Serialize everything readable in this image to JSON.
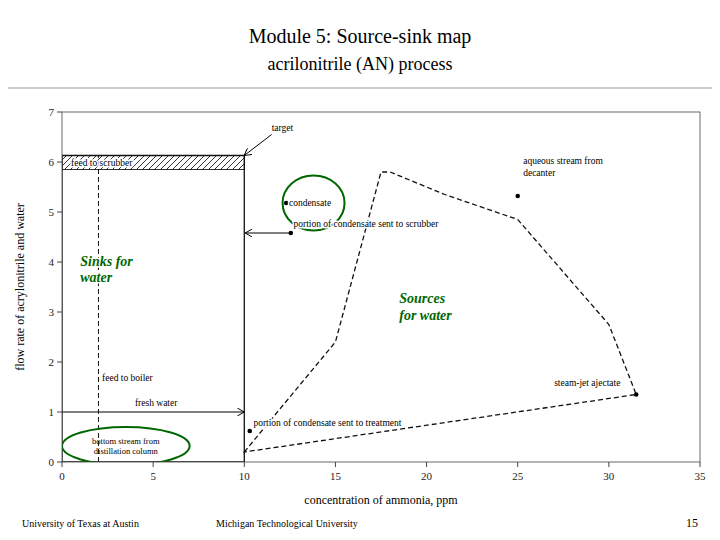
{
  "chart_data": {
    "type": "source_sink_map",
    "title": "Module 5: Source-sink map",
    "subtitle": "acrilonitrile (AN) process",
    "footer": [
      "University of Texas at Austin",
      "Michigan Technological University",
      "15"
    ],
    "x_label": "concentration of ammonia, ppm",
    "y_label": "flow rate of acrylonitrile and water",
    "xlim": [
      0,
      35
    ],
    "ylim": [
      0,
      7
    ],
    "xticks": [
      0,
      5,
      10,
      15,
      20,
      25,
      30,
      35
    ],
    "yticks": [
      0,
      1,
      2,
      3,
      4,
      5,
      6,
      7
    ],
    "grid": false,
    "sink_region": {
      "x": [
        0,
        10,
        10,
        0,
        0
      ],
      "y": [
        0,
        0,
        6.13,
        6.13,
        0
      ],
      "color": "#111111",
      "line_style": "solid"
    },
    "source_region": {
      "x": [
        10,
        15,
        17.5,
        18,
        21,
        25,
        30,
        31.5
      ],
      "y": [
        0.2,
        2.4,
        5.8,
        5.8,
        5.35,
        4.85,
        2.75,
        1.35
      ],
      "color": "#111111",
      "line_style": "dashed"
    },
    "feed_band": {
      "x": 0,
      "y": 5.85,
      "width": 10,
      "height": 0.28
    },
    "divider": {
      "x": 2.0,
      "y": [
        0,
        6.13
      ],
      "color": "#111111",
      "line_style": "dashed"
    },
    "ellipses": [
      {
        "cx": 13.8,
        "cy": 5.18,
        "rx": 1.7,
        "ry": 0.55,
        "color": "#006600"
      },
      {
        "cx": 3.5,
        "cy": 0.32,
        "rx": 3.5,
        "ry": 0.38,
        "color": "#006600",
        "label": "bottom stream from\ndistillation column"
      }
    ],
    "annotations": [
      {
        "text": "feed to scrubber",
        "x": 0.5,
        "y": 5.99
      },
      {
        "text": "target",
        "x": 11.5,
        "y": 6.55,
        "arrow_to": [
          10.0,
          6.13
        ]
      },
      {
        "text": "fresh water",
        "x": 4.0,
        "y": 1.05,
        "arrow_from": [
          0.0,
          1.0
        ],
        "arrow_to": [
          10.0,
          1.0
        ]
      },
      {
        "text": "feed to boiler",
        "x": 2.2,
        "y": 1.68
      },
      {
        "text": "condensate",
        "x": 12.45,
        "y": 5.18,
        "point": [
          12.3,
          5.18
        ]
      },
      {
        "text": "portion of condensate sent to scrubber",
        "x": 12.7,
        "y": 4.63,
        "point": [
          12.55,
          4.58
        ],
        "arrow_from": [
          12.5,
          4.58
        ],
        "arrow_to": [
          10.05,
          4.58
        ]
      },
      {
        "text": "aqueous stream from\ndecanter",
        "x": 25.3,
        "y": 5.65,
        "point": [
          25.0,
          5.32
        ]
      },
      {
        "text": "steam-jet ajectate",
        "x": 27.0,
        "y": 1.44,
        "point": [
          31.5,
          1.35
        ]
      },
      {
        "text": "portion of condensate sent to treatment",
        "x": 10.5,
        "y": 0.65,
        "point": [
          10.3,
          0.62
        ]
      }
    ],
    "region_labels": [
      {
        "text": "Sinks for\nwater",
        "x": 1.0,
        "y": 3.85,
        "color": "#006600"
      },
      {
        "text": "Sources\nfor water",
        "x": 18.5,
        "y": 3.1,
        "color": "#006600"
      }
    ]
  }
}
